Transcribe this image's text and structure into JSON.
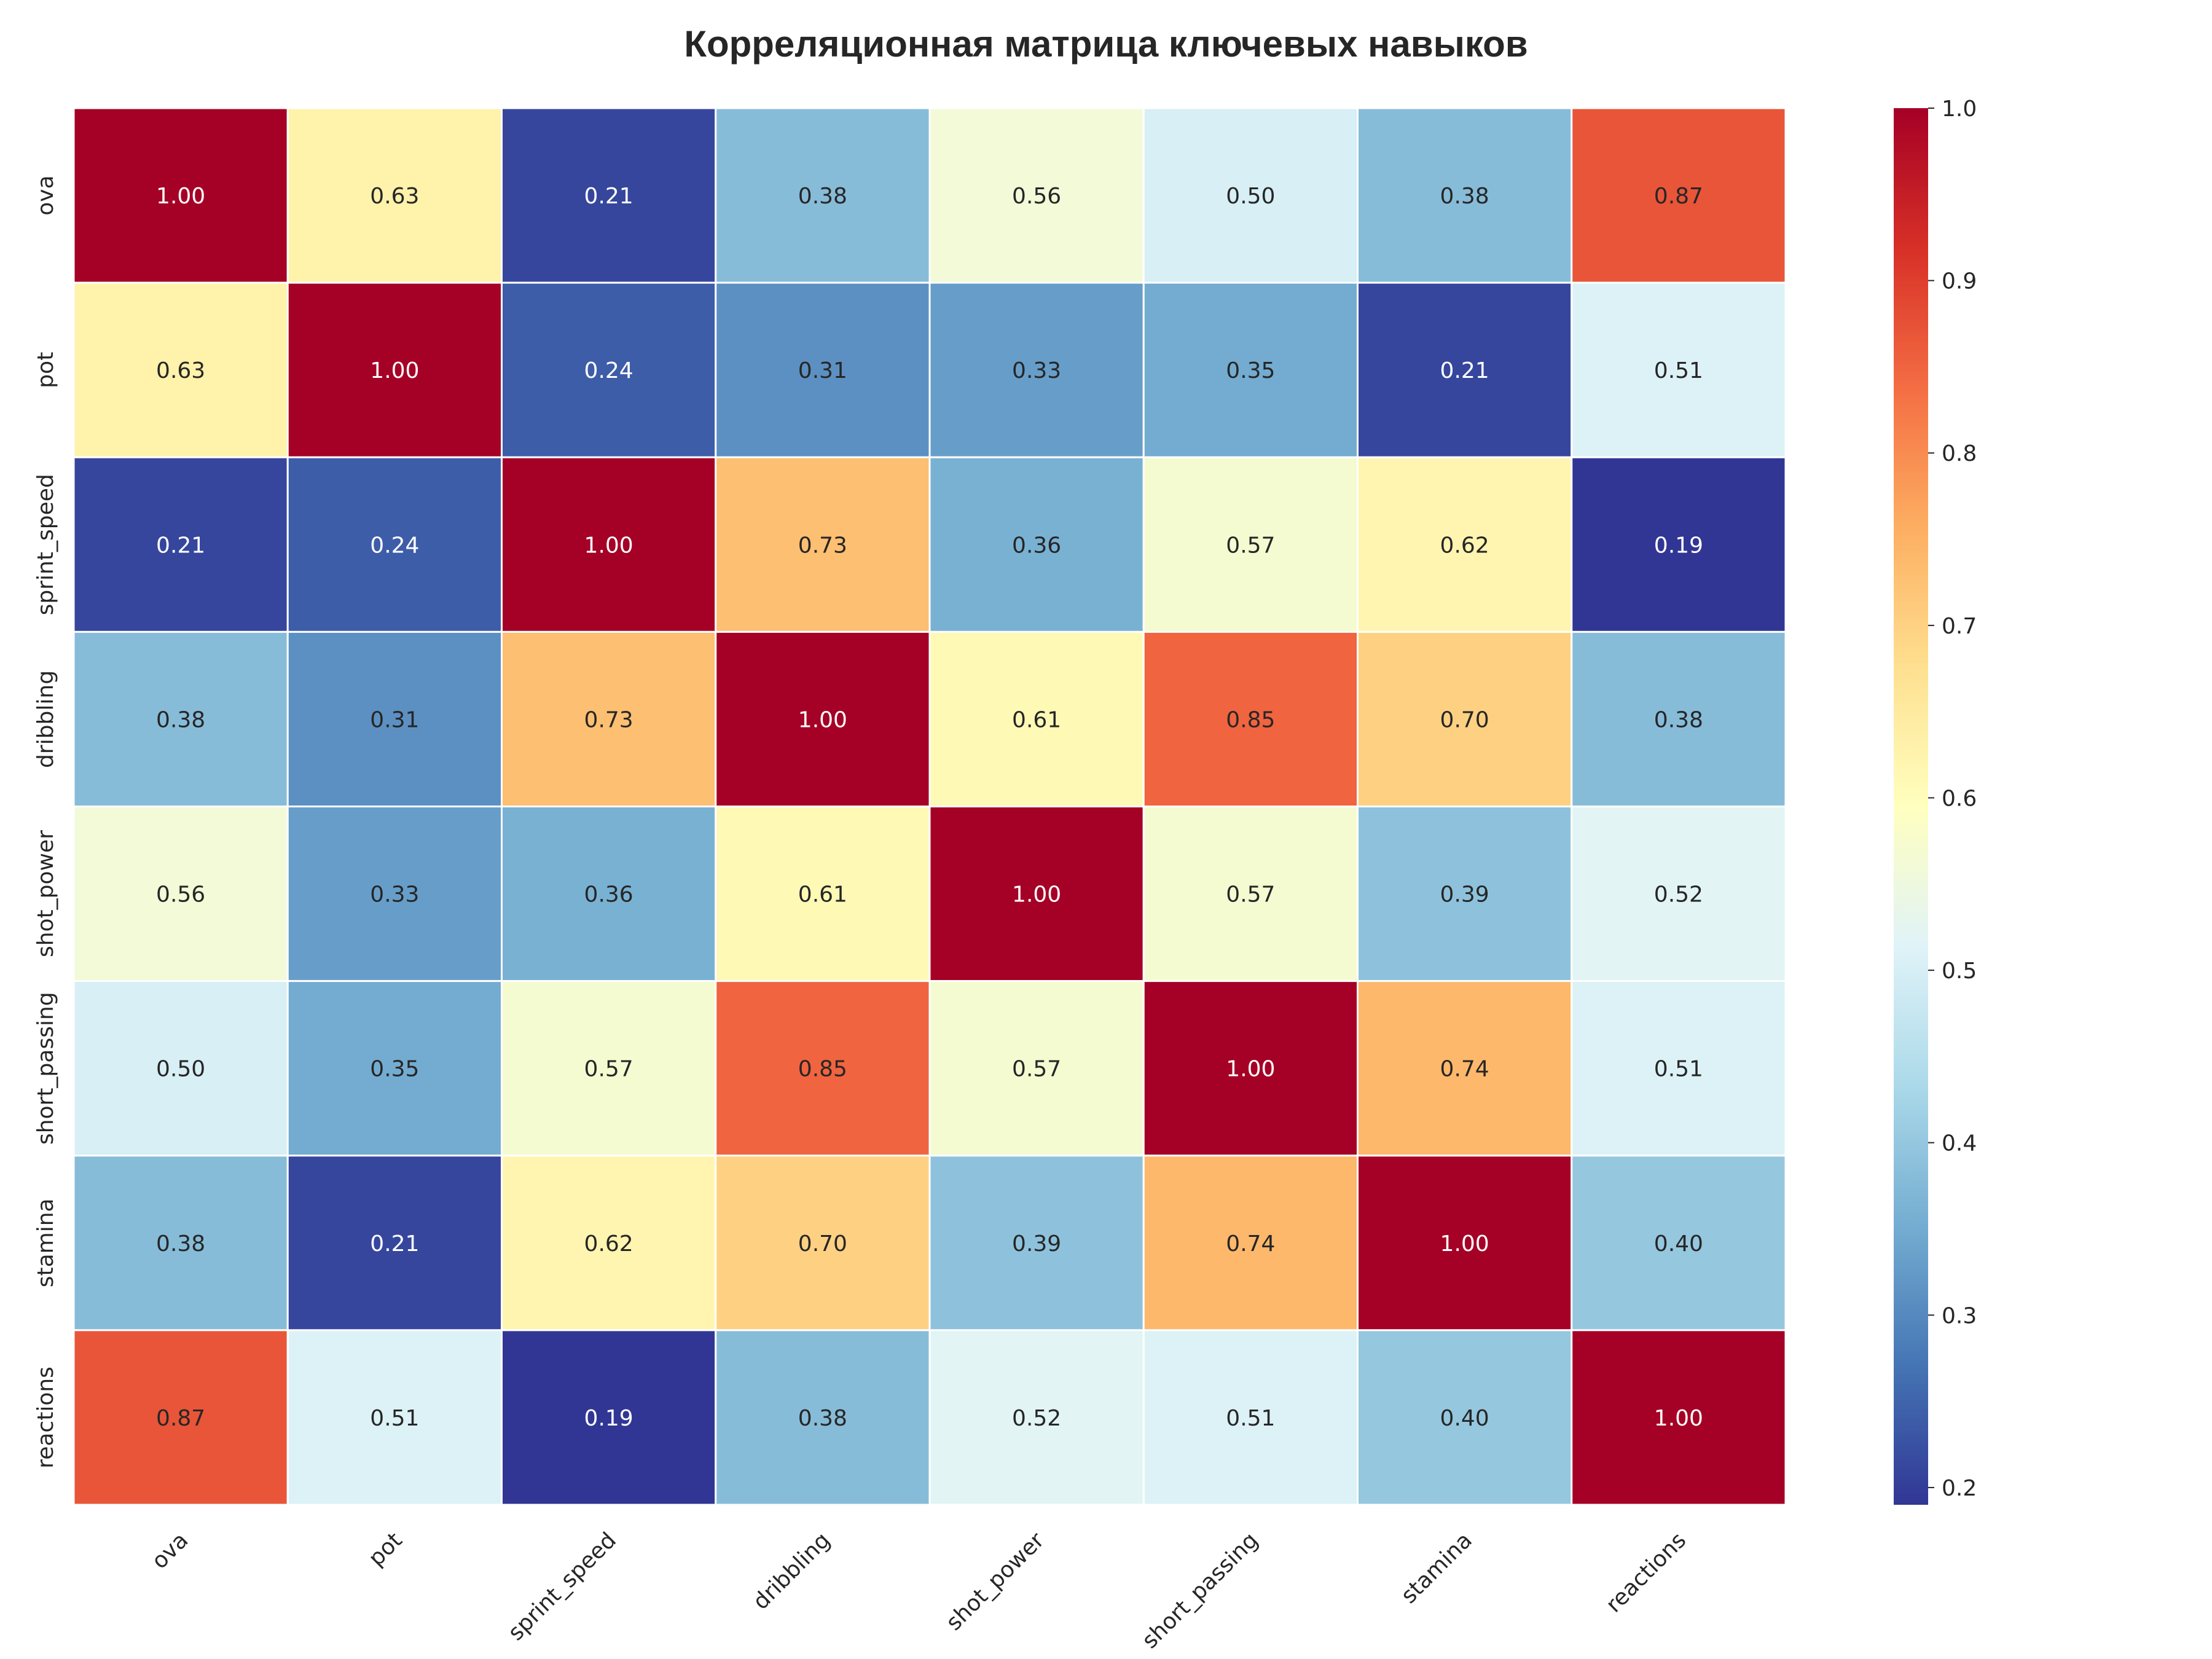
{
  "chart_data": {
    "type": "heatmap",
    "title": "Корреляционная матрица ключевых навыков",
    "xlabel": "",
    "ylabel": "",
    "x_labels": [
      "ova",
      "pot",
      "sprint_speed",
      "dribbling",
      "shot_power",
      "short_passing",
      "stamina",
      "reactions"
    ],
    "y_labels": [
      "ova",
      "pot",
      "sprint_speed",
      "dribbling",
      "shot_power",
      "short_passing",
      "stamina",
      "reactions"
    ],
    "values": [
      [
        1.0,
        0.63,
        0.21,
        0.38,
        0.56,
        0.5,
        0.38,
        0.87
      ],
      [
        0.63,
        1.0,
        0.24,
        0.31,
        0.33,
        0.35,
        0.21,
        0.51
      ],
      [
        0.21,
        0.24,
        1.0,
        0.73,
        0.36,
        0.57,
        0.62,
        0.19
      ],
      [
        0.38,
        0.31,
        0.73,
        1.0,
        0.61,
        0.85,
        0.7,
        0.38
      ],
      [
        0.56,
        0.33,
        0.36,
        0.61,
        1.0,
        0.57,
        0.39,
        0.52
      ],
      [
        0.5,
        0.35,
        0.57,
        0.85,
        0.57,
        1.0,
        0.74,
        0.51
      ],
      [
        0.38,
        0.21,
        0.62,
        0.7,
        0.39,
        0.74,
        1.0,
        0.4
      ],
      [
        0.87,
        0.51,
        0.19,
        0.38,
        0.52,
        0.51,
        0.4,
        1.0
      ]
    ],
    "colormap": "RdYlBu_r",
    "vmin": 0.19,
    "vmax": 1.0,
    "colorbar_ticks": [
      "0.2",
      "0.3",
      "0.4",
      "0.5",
      "0.6",
      "0.7",
      "0.8",
      "0.9",
      "1.0"
    ],
    "colorbar_tick_values": [
      0.2,
      0.3,
      0.4,
      0.5,
      0.6,
      0.7,
      0.8,
      0.9,
      1.0
    ],
    "colors": [
      "#313695",
      "#4575b4",
      "#74add1",
      "#abd9e9",
      "#e0f3f8",
      "#ffffbf",
      "#fee090",
      "#fdae61",
      "#f46d43",
      "#d73027",
      "#a50026"
    ],
    "grid": false,
    "legend": "colorbar-right"
  }
}
